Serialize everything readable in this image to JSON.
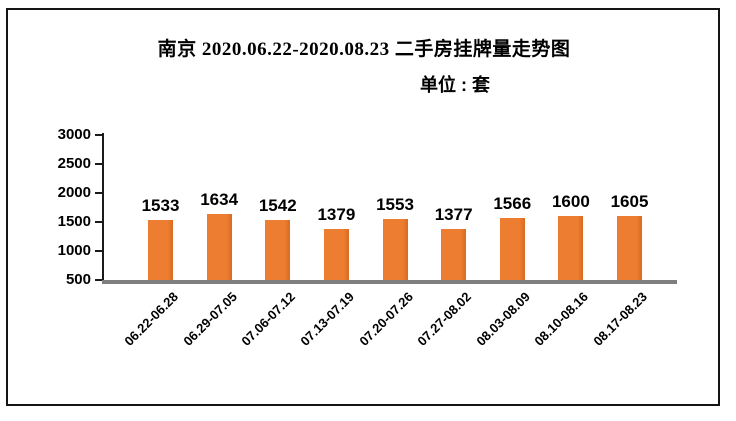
{
  "frame": {
    "border_color": "#141414",
    "background_color": "#ffffff"
  },
  "chart_data": {
    "type": "bar",
    "title": "南京 2020.06.22-2020.08.23 二手房挂牌量走势图",
    "unit_label": "单位 : 套",
    "categories": [
      "06.22-06.28",
      "06.29-07.05",
      "07.06-07.12",
      "07.13-07.19",
      "07.20-07.26",
      "07.27-08.02",
      "08.03-08.09",
      "08.10-08.16",
      "08.17-08.23"
    ],
    "values": [
      1533,
      1634,
      1542,
      1379,
      1553,
      1377,
      1566,
      1600,
      1605
    ],
    "y_ticks": [
      500,
      1000,
      1500,
      2000,
      2500,
      3000
    ],
    "ylim": [
      500,
      3000
    ],
    "grid": false,
    "legend": false,
    "data_labels": true,
    "bar_color": "#ED7D31",
    "bar_edge_color": "#D96A1F",
    "axis_color": "#1a1a1a",
    "baseline_color": "#7f7f7f",
    "text_color": "#000000"
  }
}
